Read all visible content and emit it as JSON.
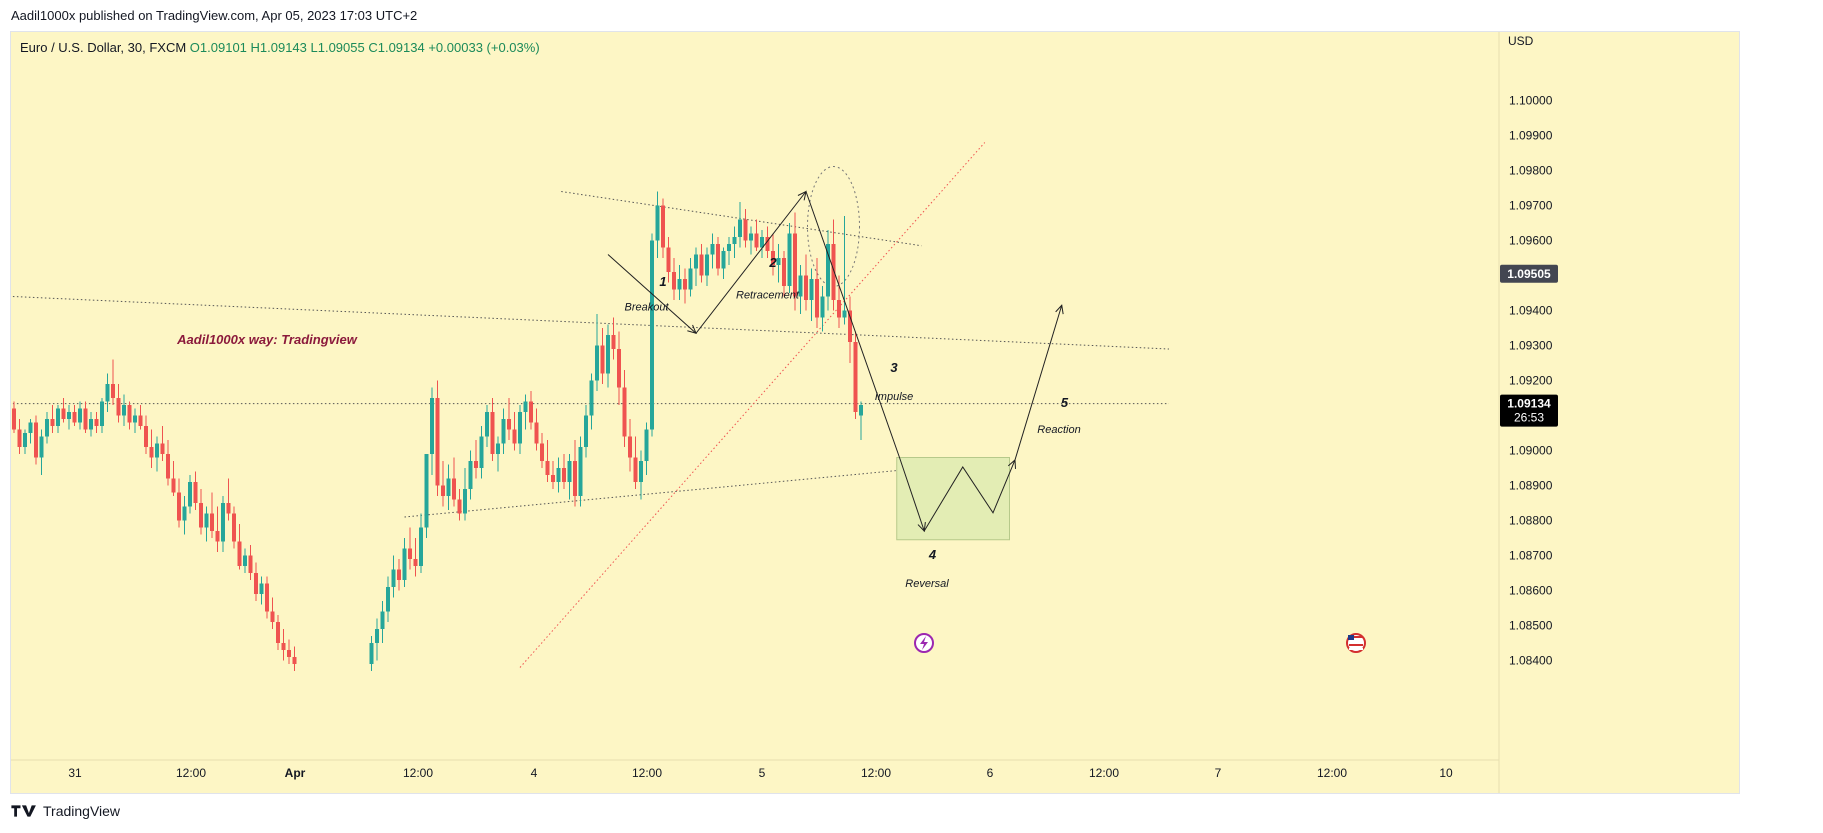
{
  "header": {
    "publish_text": "Aadil1000x published on TradingView.com, Apr 05, 2023 17:03 UTC+2"
  },
  "symbol": {
    "name": "Euro / U.S. Dollar, 30, FXCM",
    "ohlc": "O1.09101  H1.09143  L1.09055  C1.09134",
    "change": "+0.00033 (+0.03%)"
  },
  "footer": {
    "brand": "TradingView"
  },
  "colors": {
    "background": "#fdf6c5",
    "up": "#26a69a",
    "down": "#ef5350",
    "signature": "#8b1a3c",
    "price_tag": "#000000",
    "last_price_tag": "#434651",
    "box_fill": "#e3edb4",
    "box_stroke": "#b6c98a",
    "ray_red": "#ef5350"
  },
  "chart_data": {
    "type": "candlestick",
    "title": "Euro / U.S. Dollar, 30, FXCM",
    "currency_label": "USD",
    "y_axis": {
      "ticks": [
        "1.10000",
        "1.09900",
        "1.09800",
        "1.09700",
        "1.09600",
        "1.09400",
        "1.09300",
        "1.09200",
        "1.09000",
        "1.08900",
        "1.08800",
        "1.08700",
        "1.08600",
        "1.08500",
        "1.08400"
      ],
      "range": [
        1.0837,
        1.1018
      ]
    },
    "x_axis": {
      "ticks": [
        "31",
        "12:00",
        "Apr",
        "12:00",
        "4",
        "12:00",
        "5",
        "12:00",
        "6",
        "12:00",
        "7",
        "12:00",
        "10"
      ]
    },
    "last_price": {
      "value": "1.09134",
      "countdown": "26:53"
    },
    "marked_price": {
      "value": "1.09505"
    },
    "ohlc": {
      "open": 1.09101,
      "high": 1.09143,
      "low": 1.09055,
      "close": 1.09134
    },
    "candles": [
      [
        1.0912,
        1.0914,
        1.0905,
        1.0906
      ],
      [
        1.0906,
        1.0909,
        1.0899,
        1.0901
      ],
      [
        1.0901,
        1.0906,
        1.0899,
        1.0905
      ],
      [
        1.0905,
        1.0909,
        1.0902,
        1.0908
      ],
      [
        1.0908,
        1.091,
        1.0896,
        1.0898
      ],
      [
        1.0898,
        1.0906,
        1.0893,
        1.0904
      ],
      [
        1.0904,
        1.0911,
        1.0902,
        1.0909
      ],
      [
        1.0909,
        1.0913,
        1.0905,
        1.0907
      ],
      [
        1.0907,
        1.0913,
        1.0905,
        1.0912
      ],
      [
        1.0912,
        1.0915,
        1.0908,
        1.0909
      ],
      [
        1.0909,
        1.0913,
        1.0906,
        1.0911
      ],
      [
        1.0911,
        1.0913,
        1.0907,
        1.0908
      ],
      [
        1.0908,
        1.0914,
        1.0906,
        1.0912
      ],
      [
        1.0912,
        1.0914,
        1.0905,
        1.0906
      ],
      [
        1.0906,
        1.0911,
        1.0904,
        1.0909
      ],
      [
        1.0909,
        1.0911,
        1.0905,
        1.0907
      ],
      [
        1.0907,
        1.0915,
        1.0905,
        1.0914
      ],
      [
        1.0914,
        1.0922,
        1.0911,
        1.0919
      ],
      [
        1.0919,
        1.0926,
        1.0913,
        1.0915
      ],
      [
        1.0915,
        1.0919,
        1.0908,
        1.091
      ],
      [
        1.091,
        1.0916,
        1.0907,
        1.0913
      ],
      [
        1.0913,
        1.0914,
        1.0906,
        1.0908
      ],
      [
        1.0908,
        1.0912,
        1.0905,
        1.091
      ],
      [
        1.091,
        1.0913,
        1.0906,
        1.0907
      ],
      [
        1.0907,
        1.091,
        1.0899,
        1.0901
      ],
      [
        1.0901,
        1.0906,
        1.0895,
        1.0898
      ],
      [
        1.0898,
        1.0904,
        1.0894,
        1.0902
      ],
      [
        1.0902,
        1.0907,
        1.0897,
        1.0899
      ],
      [
        1.0899,
        1.0903,
        1.089,
        1.0892
      ],
      [
        1.0892,
        1.0897,
        1.0887,
        1.0888
      ],
      [
        1.0888,
        1.0892,
        1.0878,
        1.088
      ],
      [
        1.088,
        1.0887,
        1.0876,
        1.0884
      ],
      [
        1.0884,
        1.0893,
        1.0882,
        1.0891
      ],
      [
        1.0891,
        1.0894,
        1.0883,
        1.0885
      ],
      [
        1.0885,
        1.0889,
        1.0876,
        1.0878
      ],
      [
        1.0878,
        1.0884,
        1.0874,
        1.0882
      ],
      [
        1.0882,
        1.0888,
        1.0875,
        1.0877
      ],
      [
        1.0877,
        1.0884,
        1.0871,
        1.0874
      ],
      [
        1.0874,
        1.0887,
        1.0871,
        1.0885
      ],
      [
        1.0885,
        1.0892,
        1.088,
        1.0882
      ],
      [
        1.0882,
        1.0884,
        1.0872,
        1.0874
      ],
      [
        1.0874,
        1.0879,
        1.0866,
        1.0867
      ],
      [
        1.0867,
        1.0872,
        1.0865,
        1.087
      ],
      [
        1.087,
        1.0873,
        1.0863,
        1.0865
      ],
      [
        1.0865,
        1.0868,
        1.0857,
        1.0859
      ],
      [
        1.0859,
        1.0864,
        1.0856,
        1.0862
      ],
      [
        1.0862,
        1.0864,
        1.0852,
        1.0854
      ],
      [
        1.0854,
        1.0858,
        1.0849,
        1.0851
      ],
      [
        1.0851,
        1.0853,
        1.0843,
        1.0845
      ],
      [
        1.0845,
        1.0849,
        1.084,
        1.0843
      ],
      [
        1.0843,
        1.0846,
        1.0839,
        1.0841
      ],
      [
        1.0841,
        1.0844,
        1.0837,
        1.0839
      ],
      null,
      null,
      null,
      null,
      null,
      null,
      null,
      null,
      null,
      null,
      null,
      null,
      null,
      [
        1.0839,
        1.0847,
        1.0837,
        1.0845
      ],
      [
        1.0845,
        1.0852,
        1.084,
        1.0849
      ],
      [
        1.0849,
        1.0857,
        1.0845,
        1.0854
      ],
      [
        1.0854,
        1.0864,
        1.0851,
        1.0861
      ],
      [
        1.0861,
        1.087,
        1.0858,
        1.0866
      ],
      [
        1.0866,
        1.0869,
        1.086,
        1.0863
      ],
      [
        1.0863,
        1.0875,
        1.0861,
        1.0872
      ],
      [
        1.0872,
        1.0878,
        1.0866,
        1.0869
      ],
      [
        1.0869,
        1.0875,
        1.0864,
        1.0867
      ],
      [
        1.0867,
        1.0882,
        1.0865,
        1.0878
      ],
      [
        1.0878,
        1.0893,
        1.0875,
        1.0899
      ],
      [
        1.0899,
        1.0918,
        1.0893,
        1.0915
      ],
      [
        1.0915,
        1.092,
        1.0887,
        1.089
      ],
      [
        1.089,
        1.0897,
        1.0884,
        1.0887
      ],
      [
        1.0887,
        1.0896,
        1.0883,
        1.0892
      ],
      [
        1.0892,
        1.0898,
        1.0884,
        1.0886
      ],
      [
        1.0886,
        1.0889,
        1.088,
        1.0882
      ],
      [
        1.0882,
        1.0895,
        1.088,
        1.0889
      ],
      [
        1.0889,
        1.09,
        1.0886,
        1.0897
      ],
      [
        1.0897,
        1.0903,
        1.0892,
        1.0895
      ],
      [
        1.0895,
        1.0907,
        1.0892,
        1.0904
      ],
      [
        1.0904,
        1.0913,
        1.0901,
        1.0911
      ],
      [
        1.0911,
        1.0915,
        1.0897,
        1.0899
      ],
      [
        1.0899,
        1.0904,
        1.0894,
        1.0902
      ],
      [
        1.0902,
        1.0912,
        1.0899,
        1.0909
      ],
      [
        1.0909,
        1.0915,
        1.0903,
        1.0906
      ],
      [
        1.0906,
        1.0911,
        1.09,
        1.0902
      ],
      [
        1.0902,
        1.0913,
        1.0899,
        1.0911
      ],
      [
        1.0911,
        1.0916,
        1.0906,
        1.0914
      ],
      [
        1.0914,
        1.0917,
        1.0906,
        1.0908
      ],
      [
        1.0908,
        1.0912,
        1.09,
        1.0902
      ],
      [
        1.0902,
        1.0905,
        1.0895,
        1.0897
      ],
      [
        1.0897,
        1.0903,
        1.0891,
        1.0893
      ],
      [
        1.0893,
        1.0897,
        1.0889,
        1.0891
      ],
      [
        1.0891,
        1.0898,
        1.0888,
        1.0895
      ],
      [
        1.0895,
        1.0899,
        1.0889,
        1.0891
      ],
      [
        1.0891,
        1.0899,
        1.0886,
        1.0897
      ],
      [
        1.0897,
        1.0903,
        1.0884,
        1.0887
      ],
      [
        1.0887,
        1.0904,
        1.0884,
        1.0901
      ],
      [
        1.0901,
        1.0913,
        1.0898,
        1.091
      ],
      [
        1.091,
        1.0922,
        1.0906,
        1.092
      ],
      [
        1.092,
        1.0939,
        1.0917,
        1.093
      ],
      [
        1.093,
        1.0935,
        1.0919,
        1.0922
      ],
      [
        1.0922,
        1.0936,
        1.0918,
        1.0933
      ],
      [
        1.0933,
        1.0938,
        1.0926,
        1.0929
      ],
      [
        1.0929,
        1.0934,
        1.0913,
        1.0918
      ],
      [
        1.0918,
        1.0923,
        1.0901,
        1.0904
      ],
      [
        1.0904,
        1.0909,
        1.0894,
        1.0898
      ],
      [
        1.0898,
        1.0904,
        1.0889,
        1.0891
      ],
      [
        1.0891,
        1.09,
        1.0886,
        1.0897
      ],
      [
        1.0897,
        1.0908,
        1.0893,
        1.0906
      ],
      [
        1.0906,
        1.0962,
        1.0904,
        1.096
      ],
      [
        1.096,
        1.0974,
        1.0955,
        1.097
      ],
      [
        1.097,
        1.0972,
        1.0955,
        1.0958
      ],
      [
        1.0958,
        1.0961,
        1.0948,
        1.0951
      ],
      [
        1.0951,
        1.0955,
        1.0943,
        1.0946
      ],
      [
        1.0946,
        1.0953,
        1.0943,
        1.0949
      ],
      [
        1.0949,
        1.0952,
        1.0942,
        1.0946
      ],
      [
        1.0946,
        1.0955,
        1.0944,
        1.0952
      ],
      [
        1.0952,
        1.0958,
        1.0947,
        1.0956
      ],
      [
        1.0956,
        1.0959,
        1.0948,
        1.095
      ],
      [
        1.095,
        1.0958,
        1.0947,
        1.0956
      ],
      [
        1.0956,
        1.0962,
        1.0952,
        1.0959
      ],
      [
        1.0959,
        1.0961,
        1.095,
        1.0952
      ],
      [
        1.0952,
        1.0958,
        1.0949,
        1.0957
      ],
      [
        1.0957,
        1.0961,
        1.0953,
        1.0959
      ],
      [
        1.0959,
        1.0964,
        1.0955,
        1.0961
      ],
      [
        1.0961,
        1.0971,
        1.0958,
        1.0966
      ],
      [
        1.0966,
        1.0969,
        1.0958,
        1.096
      ],
      [
        1.096,
        1.0964,
        1.0956,
        1.0962
      ],
      [
        1.0962,
        1.0966,
        1.0957,
        1.0958
      ],
      [
        1.0958,
        1.0963,
        1.0955,
        1.0961
      ],
      [
        1.0961,
        1.0964,
        1.0955,
        1.0957
      ],
      [
        1.0957,
        1.0962,
        1.095,
        1.0953
      ],
      [
        1.0953,
        1.0959,
        1.0948,
        1.0955
      ],
      [
        1.0955,
        1.0957,
        1.0944,
        1.0947
      ],
      [
        1.0947,
        1.0965,
        1.0945,
        1.0962
      ],
      [
        1.0962,
        1.0968,
        1.094,
        1.0944
      ],
      [
        1.0944,
        1.0953,
        1.0939,
        1.095
      ],
      [
        1.095,
        1.0956,
        1.094,
        1.0943
      ],
      [
        1.0943,
        1.0952,
        1.0937,
        1.0949
      ],
      [
        1.0949,
        1.0955,
        1.0935,
        1.0938
      ],
      [
        1.0938,
        1.0947,
        1.0934,
        1.0944
      ],
      [
        1.0944,
        1.0963,
        1.094,
        1.0959
      ],
      [
        1.0959,
        1.0966,
        1.094,
        1.0943
      ],
      [
        1.0943,
        1.095,
        1.0935,
        1.0938
      ],
      [
        1.0938,
        1.0967,
        1.0936,
        1.094
      ],
      [
        1.094,
        1.0944,
        1.0925,
        1.0931
      ],
      [
        1.0931,
        1.0934,
        1.0909,
        1.0911
      ],
      [
        1.091,
        1.0914,
        1.0903,
        1.0913
      ]
    ],
    "trend_lines": [
      {
        "label": "",
        "from": [
          -0.2,
          1.0944
        ],
        "to": [
          210,
          1.0929
        ],
        "style": "dotted"
      },
      {
        "label": "",
        "from": [
          -0.2,
          1.09134
        ],
        "to": [
          210,
          1.09134
        ],
        "style": "dotted"
      },
      {
        "label": "",
        "from": [
          99.5,
          1.0974
        ],
        "to": [
          165,
          1.09585
        ],
        "style": "dotted"
      },
      {
        "label": "",
        "from": [
          71,
          1.0881
        ],
        "to": [
          181,
          1.08973
        ],
        "style": "dotted"
      }
    ],
    "projection_path": [
      [
        108,
        1.0956
      ],
      [
        124,
        1.09335
      ],
      [
        144,
        1.0974
      ],
      [
        161,
        1.0898
      ],
      [
        165.5,
        1.0877
      ],
      [
        172.5,
        1.08953
      ],
      [
        178,
        1.08822
      ],
      [
        182,
        1.08973
      ],
      [
        190.5,
        1.09415
      ]
    ],
    "target_zone": {
      "x": [
        160.5,
        181
      ],
      "y": [
        1.08745,
        1.0898
      ]
    },
    "annotations": [
      {
        "text": "Aadil1000x way: Tradingview",
        "x": 46,
        "y": 1.09305,
        "style": "signature"
      },
      {
        "text": "1",
        "x": 118,
        "y": 1.0947,
        "style": "number"
      },
      {
        "text": "Breakout",
        "x": 115,
        "y": 1.094,
        "style": "label"
      },
      {
        "text": "2",
        "x": 138,
        "y": 1.09525,
        "style": "number"
      },
      {
        "text": "Retracement",
        "x": 137,
        "y": 1.09435,
        "style": "label"
      },
      {
        "text": "3",
        "x": 160,
        "y": 1.09225,
        "style": "number"
      },
      {
        "text": "Impulse",
        "x": 160,
        "y": 1.09145,
        "style": "label"
      },
      {
        "text": "4",
        "x": 167,
        "y": 1.0869,
        "style": "number"
      },
      {
        "text": "Reversal",
        "x": 166,
        "y": 1.0861,
        "style": "label"
      },
      {
        "text": "5",
        "x": 191,
        "y": 1.09125,
        "style": "number"
      },
      {
        "text": "Reaction",
        "x": 190,
        "y": 1.0905,
        "style": "label"
      }
    ],
    "grid": false,
    "legend": "none"
  }
}
